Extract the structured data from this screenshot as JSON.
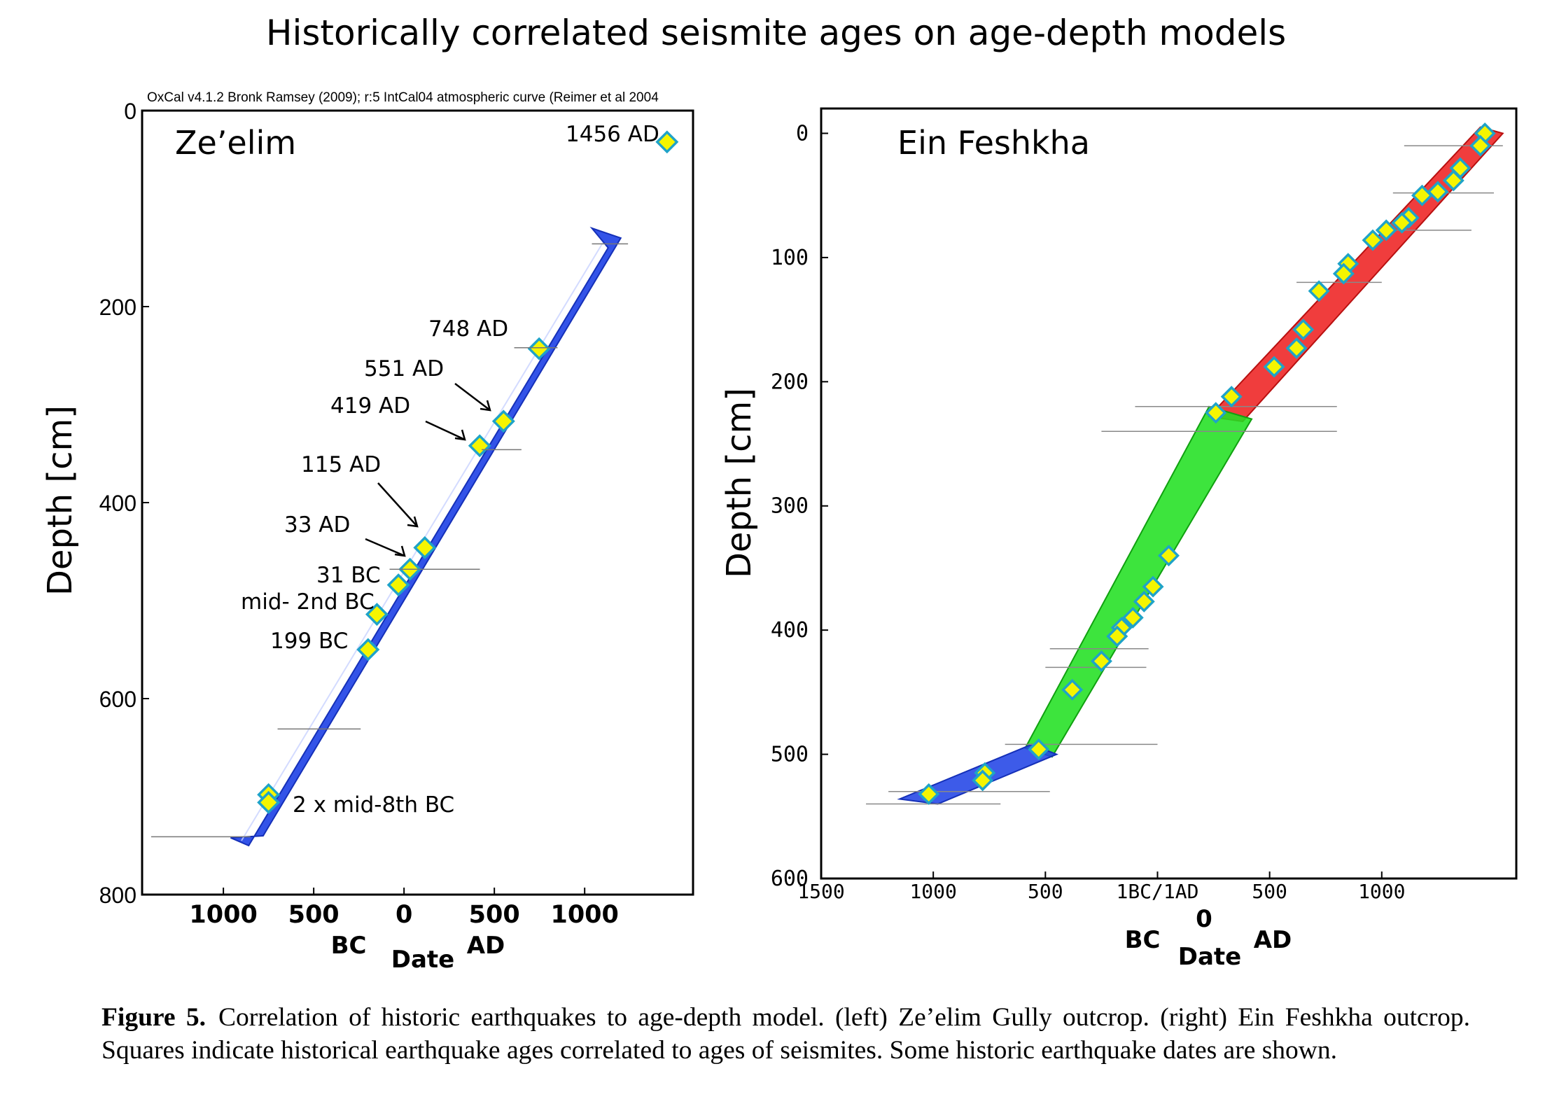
{
  "title": "Historically correlated seismite ages on age-depth models",
  "caption": {
    "label": "Figure 5.",
    "text": "Correlation of historic earthquakes to age-depth model. (left) Ze’elim Gully outcrop. (right) Ein Feshkha outcrop. Squares indicate historical earthquake ages correlated to ages of seismites. Some historic earthquake dates are shown."
  },
  "chart_data": [
    {
      "type": "scatter",
      "name": "Ze’elim",
      "header_note": "OxCal v4.1.2 Bronk Ramsey (2009); r:5 IntCal04 atmospheric curve (Reimer et al 2004",
      "panel_label": "Ze’elim",
      "xlabel": "Date",
      "xlabel_bc": "BC",
      "xlabel_ad": "AD",
      "ylabel": "Depth [cm]",
      "xlim": [
        -1450,
        1600
      ],
      "ylim": [
        800,
        0
      ],
      "x_ticks": [
        -1000,
        -500,
        0,
        500,
        1000
      ],
      "x_tick_labels": [
        "1000",
        "500",
        "0",
        "500",
        "1000"
      ],
      "y_ticks": [
        0,
        200,
        400,
        600,
        800
      ],
      "y_tick_labels": [
        "0",
        "200",
        "400",
        "600",
        "800"
      ],
      "band_color": "#2244e6",
      "band": {
        "upper": [
          [
            1040,
            120
          ],
          [
            1200,
            130
          ],
          [
            -780,
            740
          ]
        ],
        "lower": [
          [
            -960,
            742
          ],
          [
            -860,
            750
          ],
          [
            1130,
            140
          ]
        ]
      },
      "markers": [
        {
          "x": 1456,
          "y": 32,
          "label": "1456 AD"
        },
        {
          "x": 748,
          "y": 243,
          "label": "748 AD"
        },
        {
          "x": 551,
          "y": 317,
          "label": "551 AD"
        },
        {
          "x": 419,
          "y": 342,
          "label": "419 AD"
        },
        {
          "x": 115,
          "y": 446,
          "label": "115 AD"
        },
        {
          "x": 33,
          "y": 468,
          "label": "33 AD"
        },
        {
          "x": -31,
          "y": 484,
          "label": "31 BC"
        },
        {
          "x": -150,
          "y": 514,
          "label": "mid- 2nd BC"
        },
        {
          "x": -199,
          "y": 550,
          "label": "199 BC"
        },
        {
          "x": -750,
          "y": 698,
          "label": "2 x mid-8th BC"
        },
        {
          "x": -750,
          "y": 706,
          "label": ""
        }
      ]
    },
    {
      "type": "scatter",
      "name": "Ein Feshkha",
      "panel_label": "Ein Feshkha",
      "xlabel": "Date",
      "xlabel_bc": "BC",
      "xlabel_ad": "AD",
      "xlabel_zero": "0",
      "ylabel": "Depth [cm]",
      "xlim": [
        -1500,
        1600
      ],
      "ylim": [
        600,
        -20
      ],
      "x_ticks": [
        -1500,
        -1000,
        -500,
        0,
        500,
        1000
      ],
      "x_tick_labels": [
        "1500",
        "1000",
        "500",
        "1BC/1AD",
        "500",
        "1000"
      ],
      "y_ticks": [
        0,
        100,
        200,
        300,
        400,
        500,
        600
      ],
      "y_tick_labels": [
        "0",
        "100",
        "200",
        "300",
        "400",
        "500",
        "600"
      ],
      "band_colors": {
        "top": "#ee2222",
        "middle": "#22e022",
        "bottom": "#2244e6"
      },
      "markers": [
        {
          "x": 1460,
          "y": 0
        },
        {
          "x": 1440,
          "y": 10
        },
        {
          "x": 1350,
          "y": 28
        },
        {
          "x": 1320,
          "y": 38
        },
        {
          "x": 1250,
          "y": 47
        },
        {
          "x": 1180,
          "y": 50
        },
        {
          "x": 1120,
          "y": 68
        },
        {
          "x": 1090,
          "y": 72
        },
        {
          "x": 1020,
          "y": 78
        },
        {
          "x": 960,
          "y": 86
        },
        {
          "x": 850,
          "y": 105
        },
        {
          "x": 830,
          "y": 113
        },
        {
          "x": 720,
          "y": 127
        },
        {
          "x": 650,
          "y": 158
        },
        {
          "x": 620,
          "y": 173
        },
        {
          "x": 520,
          "y": 188
        },
        {
          "x": 330,
          "y": 212
        },
        {
          "x": 260,
          "y": 225
        },
        {
          "x": 50,
          "y": 340
        },
        {
          "x": -20,
          "y": 365
        },
        {
          "x": -60,
          "y": 377
        },
        {
          "x": -110,
          "y": 390
        },
        {
          "x": -160,
          "y": 398
        },
        {
          "x": -180,
          "y": 405
        },
        {
          "x": -250,
          "y": 425
        },
        {
          "x": -380,
          "y": 448
        },
        {
          "x": -530,
          "y": 496
        },
        {
          "x": -770,
          "y": 515
        },
        {
          "x": -780,
          "y": 521
        },
        {
          "x": -1020,
          "y": 532
        }
      ]
    }
  ]
}
